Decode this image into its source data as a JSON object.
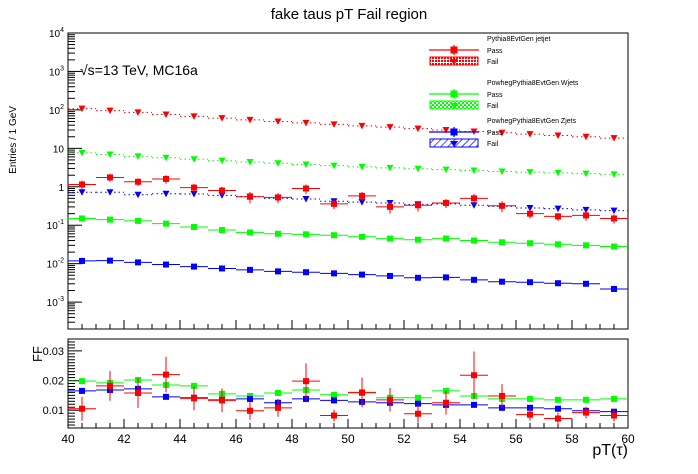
{
  "title": "fake taus pT Fail region",
  "annotation_prefix": "√s",
  "annotation_text": "=13 TeV, MC16a",
  "upper_ylabel": "Entries / 1 GeV",
  "lower_ylabel": "FF",
  "xlabel_main": "pT(",
  "xlabel_tau": "τ",
  "xlabel_close": ")",
  "legend": {
    "groups": [
      {
        "name": "Pythia8EvtGen jetjet",
        "color": "#ff0000",
        "pass_label": "Pass",
        "fail_label": "Fail",
        "fill": "dots"
      },
      {
        "name": "PowhegPythia8EvtGen Wjets",
        "color": "#00ff00",
        "pass_label": "Pass",
        "fail_label": "Fail",
        "fill": "checker"
      },
      {
        "name": "PowhegPythia8EvtGen Zjets",
        "color": "#0000ff",
        "pass_label": "Pass",
        "fail_label": "Fail",
        "fill": "hatch"
      }
    ]
  },
  "chart_data": [
    {
      "type": "scatter",
      "panel": "upper",
      "xlim": [
        40,
        60
      ],
      "ylim": [
        0.0002,
        10000
      ],
      "yscale": "log",
      "xticks": [
        40,
        42,
        44,
        46,
        48,
        50,
        52,
        54,
        56,
        58,
        60
      ],
      "yticks": [
        0.001,
        0.01,
        0.1,
        1,
        10,
        100,
        1000,
        10000
      ],
      "ytick_labels": [
        {
          "base": "10",
          "exp": "-3"
        },
        {
          "base": "10",
          "exp": "-2"
        },
        {
          "base": "10",
          "exp": "-1"
        },
        {
          "base": "1",
          "exp": ""
        },
        {
          "base": "10",
          "exp": ""
        },
        {
          "base": "10",
          "exp": "2"
        },
        {
          "base": "10",
          "exp": "3"
        },
        {
          "base": "10",
          "exp": "4"
        }
      ],
      "x": [
        40.5,
        41.5,
        42.5,
        43.5,
        44.5,
        45.5,
        46.5,
        47.5,
        48.5,
        49.5,
        50.5,
        51.5,
        52.5,
        53.5,
        54.5,
        55.5,
        56.5,
        57.5,
        58.5,
        59.5
      ],
      "series": [
        {
          "name": "Pythia8EvtGen jetjet Fail",
          "kind": "fail",
          "color": "#ff0000",
          "values": [
            108,
            96,
            86,
            76,
            68,
            61,
            55,
            50,
            46,
            42,
            38.5,
            35.5,
            32.5,
            30,
            27.5,
            25.5,
            23.5,
            21.5,
            20,
            18.5
          ]
        },
        {
          "name": "PowhegPythia8EvtGen Wjets Fail",
          "kind": "fail",
          "color": "#00ff00",
          "values": [
            7.6,
            6.9,
            6.2,
            5.7,
            5.2,
            4.8,
            4.4,
            4.1,
            3.8,
            3.55,
            3.3,
            3.1,
            2.95,
            2.8,
            2.65,
            2.5,
            2.4,
            2.3,
            2.2,
            2.1
          ]
        },
        {
          "name": "PowhegPythia8EvtGen Zjets Fail",
          "kind": "fail",
          "color": "#0000ff",
          "values": [
            0.72,
            0.72,
            0.62,
            0.66,
            0.65,
            0.6,
            0.56,
            0.5,
            0.48,
            0.42,
            0.4,
            0.38,
            0.35,
            0.36,
            0.33,
            0.31,
            0.28,
            0.27,
            0.25,
            0.24
          ]
        },
        {
          "name": "Pythia8EvtGen jetjet Pass",
          "kind": "pass",
          "color": "#ff0000",
          "values": [
            1.15,
            1.75,
            1.35,
            1.6,
            0.95,
            0.8,
            0.55,
            0.53,
            0.9,
            0.36,
            0.58,
            0.3,
            0.33,
            0.38,
            0.5,
            0.32,
            0.2,
            0.17,
            0.18,
            0.15
          ],
          "errors": [
            0.3,
            0.4,
            0.3,
            0.4,
            0.25,
            0.2,
            0.18,
            0.15,
            0.25,
            0.1,
            0.15,
            0.1,
            0.1,
            0.1,
            0.15,
            0.1,
            0.05,
            0.04,
            0.05,
            0.04
          ]
        },
        {
          "name": "PowhegPythia8EvtGen Wjets Pass",
          "kind": "pass",
          "color": "#00ff00",
          "values": [
            0.15,
            0.14,
            0.13,
            0.11,
            0.09,
            0.075,
            0.065,
            0.06,
            0.058,
            0.055,
            0.05,
            0.045,
            0.042,
            0.045,
            0.04,
            0.036,
            0.034,
            0.032,
            0.03,
            0.028
          ]
        },
        {
          "name": "PowhegPythia8EvtGen Zjets Pass",
          "kind": "pass",
          "color": "#0000ff",
          "values": [
            0.0118,
            0.012,
            0.0108,
            0.0095,
            0.0084,
            0.0075,
            0.0069,
            0.0063,
            0.006,
            0.0056,
            0.0052,
            0.0048,
            0.0043,
            0.0044,
            0.0038,
            0.0034,
            0.0033,
            0.0031,
            0.003,
            0.0022
          ]
        }
      ]
    },
    {
      "type": "scatter",
      "panel": "lower",
      "xlim": [
        40,
        60
      ],
      "ylim": [
        0.004,
        0.034
      ],
      "xticks": [
        40,
        42,
        44,
        46,
        48,
        50,
        52,
        54,
        56,
        58,
        60
      ],
      "yticks": [
        0.01,
        0.02,
        0.03
      ],
      "ytick_labels": [
        "0.01",
        "0.02",
        "0.03"
      ],
      "xlabel": "pT(τ)",
      "ylabel": "FF",
      "x": [
        40.5,
        41.5,
        42.5,
        43.5,
        44.5,
        45.5,
        46.5,
        47.5,
        48.5,
        49.5,
        50.5,
        51.5,
        52.5,
        53.5,
        54.5,
        55.5,
        56.5,
        57.5,
        58.5,
        59.5
      ],
      "series": [
        {
          "name": "Pythia8EvtGen jetjet",
          "color": "#ff0000",
          "values": [
            0.0105,
            0.0182,
            0.0158,
            0.022,
            0.014,
            0.0133,
            0.0098,
            0.0108,
            0.0198,
            0.0082,
            0.016,
            0.0135,
            0.0088,
            0.0125,
            0.0218,
            0.0148,
            0.0085,
            0.0072,
            0.0092,
            0.0082
          ],
          "errors": [
            0.004,
            0.005,
            0.005,
            0.006,
            0.004,
            0.004,
            0.003,
            0.003,
            0.006,
            0.002,
            0.005,
            0.004,
            0.003,
            0.004,
            0.008,
            0.004,
            0.002,
            0.002,
            0.002,
            0.002
          ]
        },
        {
          "name": "PowhegPythia8EvtGen Wjets",
          "color": "#00ff00",
          "values": [
            0.0198,
            0.0192,
            0.0202,
            0.0185,
            0.0182,
            0.0155,
            0.0148,
            0.0158,
            0.0168,
            0.0152,
            0.0158,
            0.0142,
            0.0142,
            0.0165,
            0.0148,
            0.0138,
            0.0138,
            0.0135,
            0.0135,
            0.0138
          ]
        },
        {
          "name": "PowhegPythia8EvtGen Zjets",
          "color": "#0000ff",
          "values": [
            0.0165,
            0.0168,
            0.0172,
            0.0145,
            0.0142,
            0.0135,
            0.0138,
            0.0125,
            0.0138,
            0.0133,
            0.0128,
            0.0125,
            0.0122,
            0.0118,
            0.0118,
            0.0108,
            0.0108,
            0.0105,
            0.0098,
            0.0095
          ]
        }
      ]
    }
  ]
}
